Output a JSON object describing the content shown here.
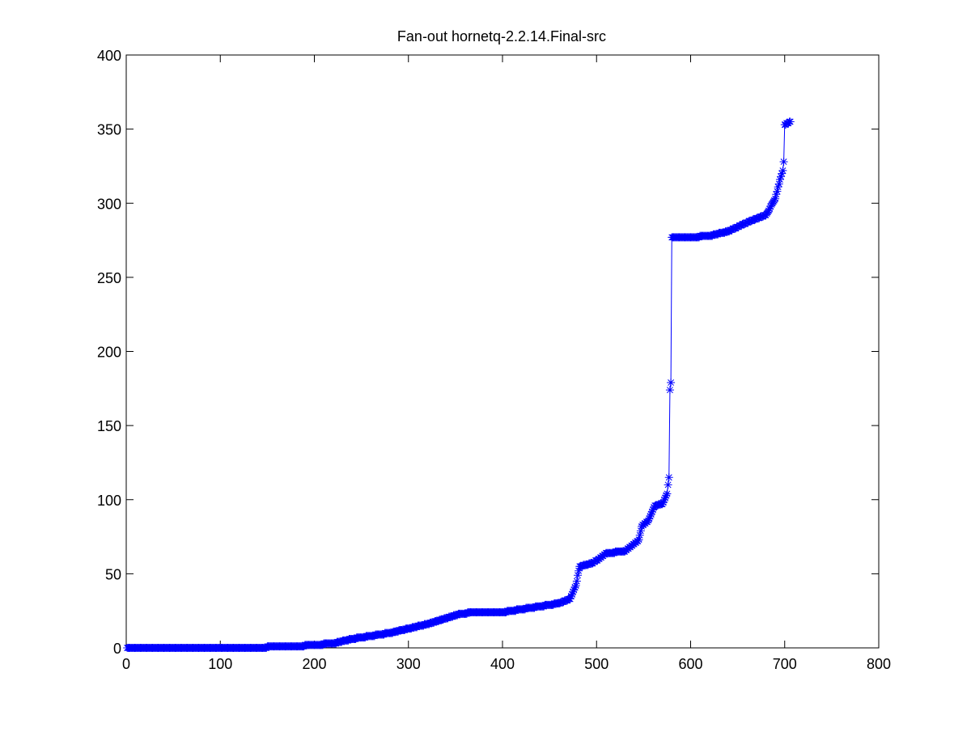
{
  "chart_data": {
    "type": "line",
    "title": "Fan-out hornetq-2.2.14.Final-src",
    "xlabel": "",
    "ylabel": "",
    "xlim": [
      0,
      800
    ],
    "ylim": [
      0,
      400
    ],
    "xticks": [
      0,
      100,
      200,
      300,
      400,
      500,
      600,
      700,
      800
    ],
    "yticks": [
      0,
      50,
      100,
      150,
      200,
      250,
      300,
      350,
      400
    ],
    "xtick_labels": [
      "0",
      "100",
      "200",
      "300",
      "400",
      "500",
      "600",
      "700",
      "800"
    ],
    "ytick_labels": [
      "0",
      "50",
      "100",
      "150",
      "200",
      "250",
      "300",
      "350",
      "400"
    ],
    "grid": false,
    "legend": "none",
    "marker": "asterisk",
    "color": "#0000ff",
    "series": [
      {
        "n_points": 706,
        "keypoints": [
          [
            1,
            0
          ],
          [
            140,
            0
          ],
          [
            160,
            1
          ],
          [
            180,
            1
          ],
          [
            200,
            2
          ],
          [
            220,
            3
          ],
          [
            240,
            6
          ],
          [
            260,
            8
          ],
          [
            280,
            10
          ],
          [
            300,
            13
          ],
          [
            320,
            16
          ],
          [
            340,
            20
          ],
          [
            355,
            23
          ],
          [
            370,
            24
          ],
          [
            400,
            24
          ],
          [
            420,
            26
          ],
          [
            440,
            28
          ],
          [
            460,
            30
          ],
          [
            472,
            33
          ],
          [
            478,
            42
          ],
          [
            482,
            55
          ],
          [
            495,
            57
          ],
          [
            505,
            61
          ],
          [
            510,
            64
          ],
          [
            530,
            65
          ],
          [
            545,
            73
          ],
          [
            548,
            82
          ],
          [
            555,
            86
          ],
          [
            562,
            96
          ],
          [
            570,
            97
          ],
          [
            575,
            104
          ],
          [
            577,
            115
          ],
          [
            578,
            174
          ],
          [
            579,
            179
          ],
          [
            580,
            277
          ],
          [
            600,
            277
          ],
          [
            620,
            278
          ],
          [
            640,
            281
          ],
          [
            660,
            287
          ],
          [
            680,
            292
          ],
          [
            690,
            303
          ],
          [
            695,
            316
          ],
          [
            698,
            322
          ],
          [
            699,
            328
          ],
          [
            700,
            353
          ],
          [
            706,
            355
          ]
        ]
      }
    ]
  }
}
